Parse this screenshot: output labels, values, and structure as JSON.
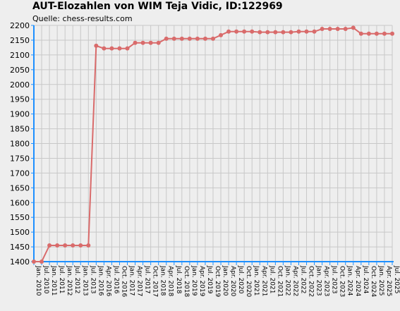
{
  "chart_data": {
    "type": "line",
    "title": "AUT-Elozahlen von WIM Teja Vidic, ID:122969",
    "subtitle": "Quelle: chess-results.com",
    "xlabel": "",
    "ylabel": "",
    "ylim": [
      1400,
      2200
    ],
    "yticks": [
      1400,
      1450,
      1500,
      1550,
      1600,
      1650,
      1700,
      1750,
      1800,
      1850,
      1900,
      1950,
      2000,
      2050,
      2100,
      2150,
      2200
    ],
    "grid": true,
    "legend": "none",
    "line_color": "#d96b6b",
    "axis_color": "#1e90ff",
    "categories": [
      "Jan. 2010",
      "Jul. 2010",
      "Jan. 2011",
      "Jul. 2011",
      "Jan. 2012",
      "Jul. 2012",
      "Jan. 2013",
      "Jul. 2013",
      "Jan. 2016",
      "Apr. 2016",
      "Jul. 2016",
      "Oct. 2016",
      "Jan. 2017",
      "Apr. 2017",
      "Jul. 2017",
      "Oct. 2017",
      "Jan. 2018",
      "Apr. 2018",
      "Jul. 2018",
      "Oct. 2018",
      "Jan. 2019",
      "Apr. 2019",
      "Jul. 2019",
      "Oct. 2019",
      "Jan. 2020",
      "Apr. 2020",
      "Jul. 2020",
      "Oct. 2020",
      "Jan. 2021",
      "Apr. 2021",
      "Jul. 2021",
      "Oct. 2021",
      "Jan. 2022",
      "Apr. 2022",
      "Jul. 2022",
      "Oct. 2022",
      "Jan. 2023",
      "Apr. 2023",
      "Jul. 2023",
      "Oct. 2023",
      "Jan. 2024",
      "Apr. 2024",
      "Jul. 2024",
      "Oct. 2024",
      "Jan. 2025",
      "Apr. 2025",
      "Jul. 2025"
    ],
    "values": [
      1400,
      1400,
      1455,
      1455,
      1455,
      1455,
      1455,
      1455,
      2131,
      2122,
      2122,
      2122,
      2122,
      2141,
      2141,
      2141,
      2141,
      2155,
      2155,
      2155,
      2155,
      2155,
      2155,
      2155,
      2167,
      2179,
      2179,
      2179,
      2179,
      2177,
      2177,
      2177,
      2177,
      2177,
      2179,
      2179,
      2179,
      2188,
      2188,
      2188,
      2188,
      2192,
      2172,
      2172,
      2172,
      2172,
      2172
    ]
  }
}
